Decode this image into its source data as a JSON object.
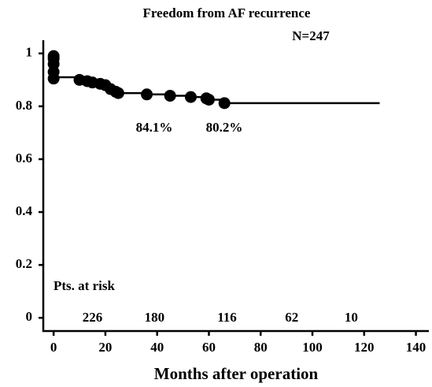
{
  "chart_data": {
    "type": "km",
    "title": "Freedom from AF recurrence",
    "subtitle": "N=247",
    "xlabel": "Months after operation",
    "xlim": [
      -4,
      145
    ],
    "xticks": [
      0,
      20,
      40,
      60,
      80,
      100,
      120,
      140
    ],
    "ylim": [
      -0.05,
      1.05
    ],
    "yticks": [
      0,
      0.2,
      0.4,
      0.6,
      0.8,
      1
    ],
    "color": "#000000",
    "curve": {
      "x": [
        0,
        0.5,
        1,
        10,
        13,
        15,
        18,
        20,
        22,
        24,
        25,
        36,
        45,
        53,
        59,
        60,
        66,
        126
      ],
      "values": [
        1,
        0.98,
        0.91,
        0.9,
        0.895,
        0.89,
        0.885,
        0.88,
        0.865,
        0.855,
        0.85,
        0.845,
        0.84,
        0.835,
        0.83,
        0.825,
        0.812,
        0.812
      ]
    },
    "markers": {
      "x": [
        0,
        0,
        0,
        0,
        0,
        10,
        13,
        15,
        18,
        20,
        22,
        24,
        25,
        36,
        45,
        53,
        59,
        60,
        66
      ],
      "values": [
        0.99,
        0.98,
        0.96,
        0.93,
        0.905,
        0.9,
        0.895,
        0.89,
        0.885,
        0.88,
        0.865,
        0.855,
        0.85,
        0.845,
        0.84,
        0.835,
        0.83,
        0.825,
        0.812
      ]
    },
    "annotations": [
      "84.1%",
      "80.2%"
    ],
    "at_risk_label": "Pts. at risk",
    "at_risk": {
      "x": [
        15,
        39,
        67,
        92,
        115
      ],
      "values": [
        226,
        180,
        116,
        62,
        10
      ]
    }
  }
}
